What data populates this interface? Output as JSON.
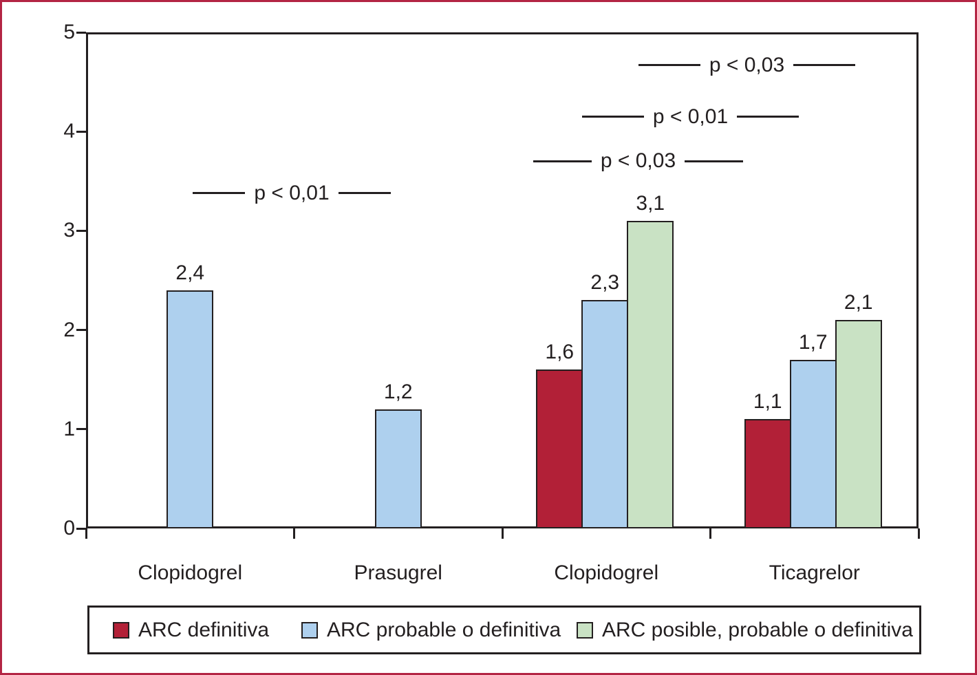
{
  "figure": {
    "background": "#ffffff",
    "border_color": "#b32544",
    "line_color": "#231f20",
    "title": ""
  },
  "chart_data": {
    "type": "bar",
    "title": "",
    "xlabel": "",
    "ylabel": "",
    "categories": [
      "Clopidogrel",
      "Prasugrel",
      "Clopidogrel",
      "Ticagrelor"
    ],
    "series": [
      {
        "name": "ARC definitiva",
        "color": "#b22037",
        "values": [
          null,
          null,
          1.6,
          1.1
        ]
      },
      {
        "name": "ARC probable o definitiva",
        "color": "#aed0ee",
        "values": [
          2.4,
          1.2,
          2.3,
          1.7
        ]
      },
      {
        "name": "ARC posible, probable o definitiva",
        "color": "#c9e2c4",
        "values": [
          null,
          null,
          3.1,
          2.1
        ]
      }
    ],
    "value_labels": [
      [
        "2,4"
      ],
      [
        "1,2"
      ],
      [
        "1,6",
        "2,3",
        "3,1"
      ],
      [
        "1,1",
        "1,7",
        "2,1"
      ]
    ],
    "ylim": [
      0,
      5
    ],
    "yticks": [
      0,
      1,
      2,
      3,
      4,
      5
    ],
    "decimal_separator": ",",
    "grid": false,
    "legend_position": "bottom-box",
    "annotations": [
      {
        "text": "p < 0,01",
        "y": 3.38,
        "compares": {
          "from": {
            "group": 0,
            "series": 1
          },
          "to": {
            "group": 1,
            "series": 1
          }
        }
      },
      {
        "text": "p < 0,03",
        "y": 3.7,
        "compares": {
          "from": {
            "group": 2,
            "series": 0
          },
          "to": {
            "group": 3,
            "series": 0
          }
        }
      },
      {
        "text": "p < 0,01",
        "y": 4.15,
        "compares": {
          "from": {
            "group": 2,
            "series": 1
          },
          "to": {
            "group": 3,
            "series": 1
          }
        }
      },
      {
        "text": "p < 0,03",
        "y": 4.67,
        "compares": {
          "from": {
            "group": 2,
            "series": 2
          },
          "to": {
            "group": 3,
            "series": 2
          }
        }
      }
    ]
  }
}
